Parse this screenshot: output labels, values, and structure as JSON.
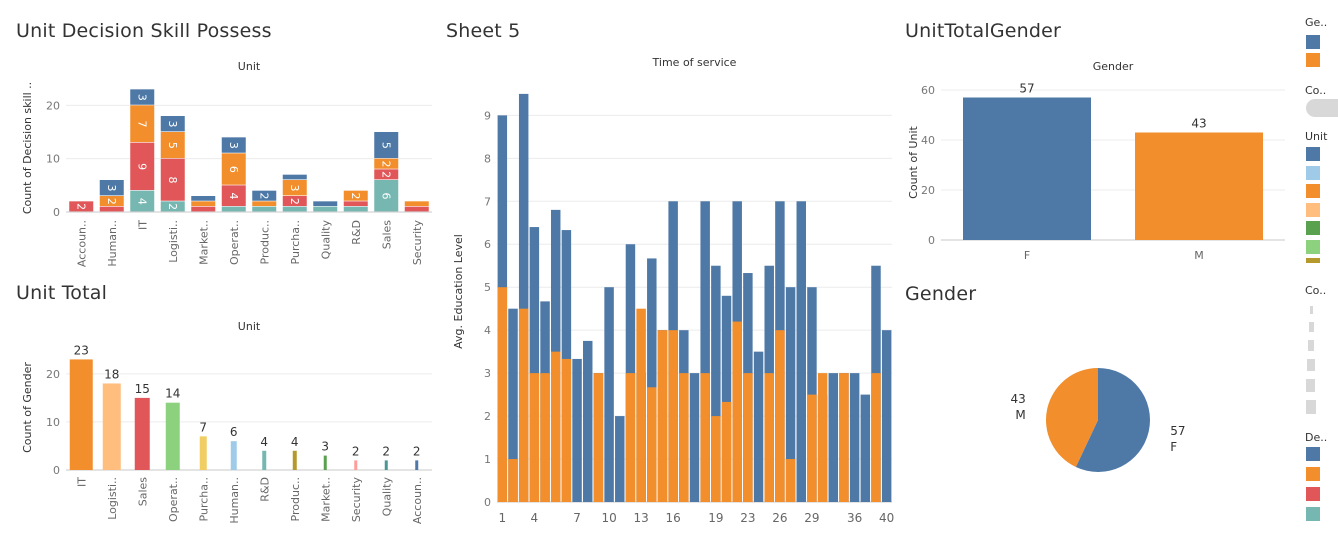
{
  "titles": {
    "decision": "Unit Decision Skill Possess",
    "sheet5": "Sheet 5",
    "gendertotal": "UnitTotalGender",
    "unittotal": "Unit Total",
    "gender": "Gender"
  },
  "legend": {
    "gender_title": "Ge..",
    "count_title": "Co..",
    "unit_title": "Unit",
    "count2_title": "Co..",
    "decision_title": "De..",
    "gender_colors": [
      "#4e79a7",
      "#f28e2b"
    ],
    "unit_colors": [
      "#4e79a7",
      "#a0cbe8",
      "#f28e2b",
      "#ffbe7d",
      "#59a14f",
      "#8cd17d",
      "#b6992d"
    ],
    "decision_colors": [
      "#4e79a7",
      "#f28e2b",
      "#e15759",
      "#76b7b2"
    ]
  },
  "chart_data": [
    {
      "id": "decision",
      "type": "bar",
      "stacked": true,
      "title": "Unit Decision Skill Possess",
      "header": "Unit",
      "ylabel": "Count of Decision skill ..",
      "ylim": [
        0,
        24
      ],
      "yticks": [
        0,
        10,
        20
      ],
      "categories": [
        "Accoun..",
        "Human..",
        "IT",
        "Logisti..",
        "Market..",
        "Operat..",
        "Produc..",
        "Purcha..",
        "Quality",
        "R&D",
        "Sales",
        "Security"
      ],
      "series": [
        {
          "color": "#76b7b2",
          "values": [
            0,
            0,
            4,
            2,
            0,
            1,
            1,
            1,
            1,
            1,
            6,
            0
          ]
        },
        {
          "color": "#e15759",
          "values": [
            2,
            1,
            9,
            8,
            1,
            4,
            0,
            2,
            0,
            1,
            2,
            1
          ]
        },
        {
          "color": "#f28e2b",
          "values": [
            0,
            2,
            7,
            5,
            1,
            6,
            1,
            3,
            0,
            2,
            2,
            1
          ]
        },
        {
          "color": "#4e79a7",
          "values": [
            0,
            3,
            3,
            3,
            1,
            3,
            2,
            1,
            1,
            0,
            5,
            0
          ]
        }
      ]
    },
    {
      "id": "sheet5",
      "type": "bar",
      "stacked": false,
      "title": "Sheet 5",
      "header": "Time of service",
      "ylabel": "Avg. Education Level",
      "ylim": [
        0,
        9.8
      ],
      "yticks": [
        0,
        1,
        2,
        3,
        4,
        5,
        6,
        7,
        8,
        9
      ],
      "xticklabels": [
        "1",
        "4",
        "7",
        "10",
        "13",
        "16",
        "19",
        "23",
        "26",
        "29",
        "36",
        "40"
      ],
      "series": [
        {
          "color": "#4e79a7",
          "values": [
            9,
            4.5,
            9.5,
            6.4,
            4.67,
            6.8,
            6.33,
            3.33,
            3.75,
            3,
            5,
            2,
            6,
            3,
            5.67,
            4,
            7,
            4,
            3,
            7,
            5.5,
            4.8,
            7,
            5.33,
            3.5,
            5.5,
            7,
            5,
            7,
            5,
            2.5,
            3,
            3,
            3,
            2.5,
            5.5,
            4
          ]
        },
        {
          "color": "#f28e2b",
          "values": [
            5,
            1,
            4.5,
            3,
            3,
            3.5,
            3.33,
            0,
            0,
            3,
            0,
            0,
            3,
            4.5,
            2.67,
            4,
            4,
            3,
            0,
            3,
            2,
            2.33,
            4.2,
            3,
            0,
            3,
            4,
            1,
            0,
            2.5,
            3,
            0,
            3,
            0,
            0,
            3,
            0
          ]
        }
      ]
    },
    {
      "id": "gendertotal",
      "type": "bar",
      "title": "UnitTotalGender",
      "header": "Gender",
      "ylabel": "Count of Unit",
      "ylim": [
        0,
        62
      ],
      "yticks": [
        0,
        20,
        40,
        60
      ],
      "categories": [
        "F",
        "M"
      ],
      "values": [
        57,
        43
      ],
      "colors": [
        "#4e79a7",
        "#f28e2b"
      ]
    },
    {
      "id": "unittotal",
      "type": "bar",
      "title": "Unit Total",
      "header": "Unit",
      "ylabel": "Count of Gender",
      "ylim": [
        0,
        26
      ],
      "yticks": [
        0,
        10,
        20
      ],
      "categories": [
        "IT",
        "Logisti..",
        "Sales",
        "Operat..",
        "Purcha..",
        "Human..",
        "R&D",
        "Produc..",
        "Market..",
        "Security",
        "Quality",
        "Accoun.."
      ],
      "values": [
        23,
        18,
        15,
        14,
        7,
        6,
        4,
        4,
        3,
        2,
        2,
        2
      ],
      "colors": [
        "#f28e2b",
        "#ffbe7d",
        "#e15759",
        "#8cd17d",
        "#f1ce63",
        "#a0cbe8",
        "#76b7b2",
        "#b6992d",
        "#59a14f",
        "#ff9d9a",
        "#499894",
        "#4e79a7"
      ]
    },
    {
      "id": "gender",
      "type": "pie",
      "title": "Gender",
      "slices": [
        {
          "label": "F",
          "value": 57,
          "color": "#4e79a7"
        },
        {
          "label": "M",
          "value": 43,
          "color": "#f28e2b"
        }
      ]
    }
  ]
}
